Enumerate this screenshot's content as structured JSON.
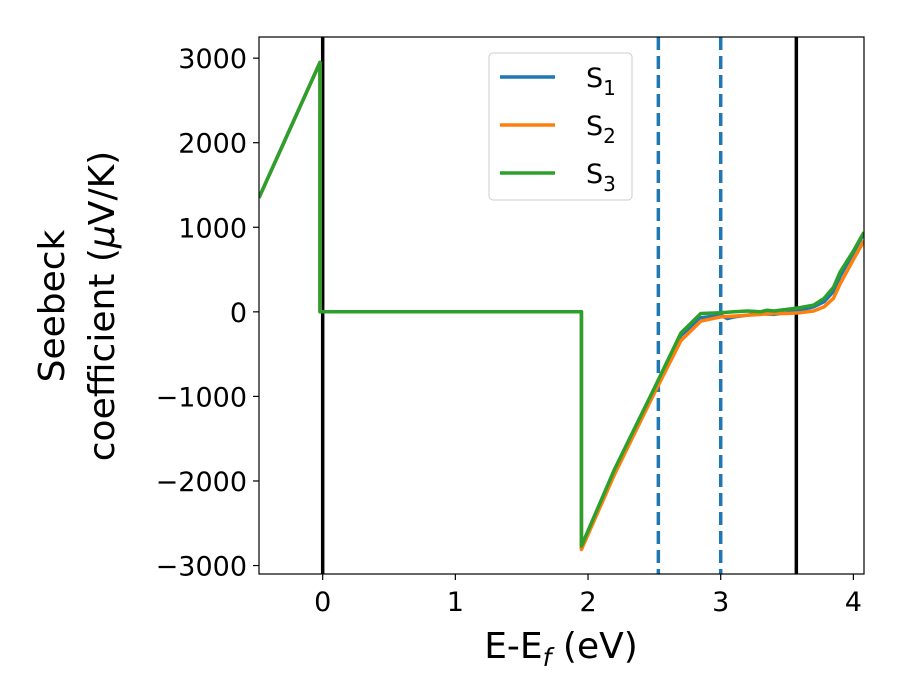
{
  "chart_data": {
    "type": "line",
    "xlabel": {
      "main": "E-E",
      "sub": "f",
      "unit": " (eV)"
    },
    "ylabel": {
      "line1": "Seebeck",
      "line2_prefix": "coefficient  (",
      "mu": "μ",
      "line2_suffix": "V/K)"
    },
    "xlim": [
      -0.48,
      4.08
    ],
    "ylim": [
      -3100,
      3250
    ],
    "xticks": [
      0,
      1,
      2,
      3,
      4
    ],
    "xtick_labels": [
      "0",
      "1",
      "2",
      "3",
      "4"
    ],
    "yticks": [
      -3000,
      -2000,
      -1000,
      0,
      1000,
      2000,
      3000
    ],
    "ytick_labels": [
      "−3000",
      "−2000",
      "−1000",
      "0",
      "1000",
      "2000",
      "3000"
    ],
    "legend_position": "top-center",
    "grid": false,
    "vertical_lines": [
      {
        "x": 0.0,
        "style": "solid",
        "color": "#000000"
      },
      {
        "x": 3.57,
        "style": "solid",
        "color": "#000000"
      },
      {
        "x": 2.53,
        "style": "dashed",
        "color": "#1f77b4"
      },
      {
        "x": 3.0,
        "style": "dashed",
        "color": "#1f77b4"
      }
    ],
    "series": [
      {
        "name": "S",
        "sub": "1",
        "color": "#1f77b4",
        "x": [
          -0.48,
          -0.02,
          -0.02,
          1.95,
          1.95,
          2.2,
          2.5,
          2.7,
          2.85,
          3.0,
          3.05,
          3.1,
          3.2,
          3.3,
          3.4,
          3.5,
          3.6,
          3.7,
          3.78,
          3.85,
          3.9,
          4.0,
          4.08
        ],
        "y": [
          1350,
          2950,
          0,
          0,
          -2790,
          -1890,
          -920,
          -280,
          -70,
          -40,
          -80,
          -60,
          -40,
          -20,
          -30,
          -10,
          20,
          60,
          120,
          240,
          420,
          700,
          930
        ]
      },
      {
        "name": "S",
        "sub": "2",
        "color": "#ff7f0e",
        "x": [
          -0.48,
          -0.02,
          -0.02,
          1.95,
          1.95,
          2.2,
          2.5,
          2.7,
          2.85,
          3.0,
          3.1,
          3.2,
          3.3,
          3.4,
          3.5,
          3.6,
          3.7,
          3.78,
          3.85,
          3.9,
          4.0,
          4.08
        ],
        "y": [
          1350,
          2950,
          0,
          0,
          -2810,
          -1920,
          -960,
          -340,
          -110,
          -60,
          -50,
          -40,
          -30,
          -20,
          -20,
          -10,
          10,
          60,
          160,
          330,
          620,
          840
        ]
      },
      {
        "name": "S",
        "sub": "3",
        "color": "#2ca02c",
        "x": [
          -0.48,
          -0.02,
          -0.02,
          1.95,
          1.95,
          2.2,
          2.5,
          2.7,
          2.85,
          3.0,
          3.1,
          3.2,
          3.3,
          3.35,
          3.4,
          3.5,
          3.6,
          3.7,
          3.78,
          3.85,
          3.9,
          4.0,
          4.08
        ],
        "y": [
          1350,
          2950,
          0,
          0,
          -2770,
          -1860,
          -900,
          -250,
          -20,
          -10,
          0,
          10,
          0,
          20,
          10,
          30,
          50,
          80,
          160,
          290,
          470,
          720,
          940
        ]
      }
    ]
  }
}
